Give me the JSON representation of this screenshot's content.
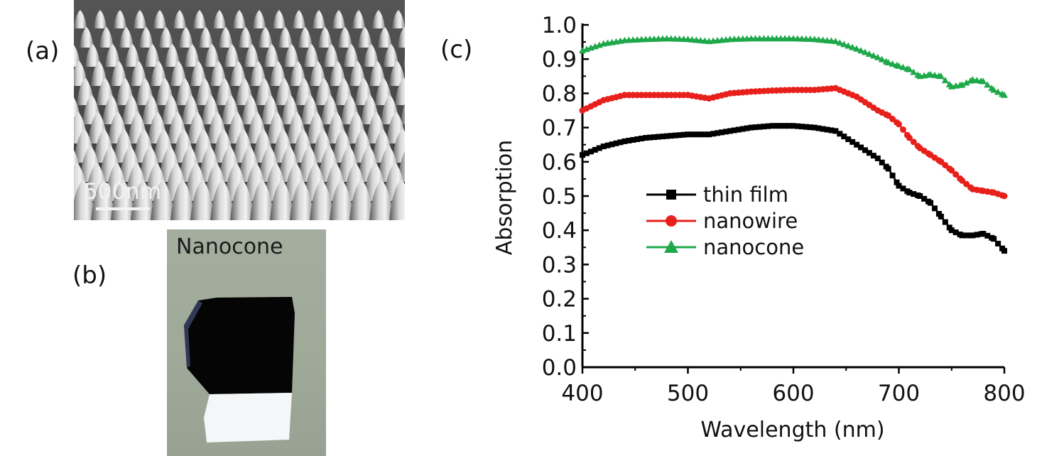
{
  "panels": {
    "a": "(a)",
    "b": "(b)",
    "c": "(c)"
  },
  "sem": {
    "scale_label": "500nm"
  },
  "photo": {
    "title": "Nanocone"
  },
  "colors": {
    "thin_film": "#000000",
    "nanowire": "#e8201c",
    "nanocone": "#1fa84a"
  },
  "chart_data": {
    "type": "line",
    "title": "",
    "xlabel": "Wavelength (nm)",
    "ylabel": "Absorption",
    "xlim": [
      400,
      800
    ],
    "ylim": [
      0.0,
      1.0
    ],
    "xticks": [
      400,
      500,
      600,
      700,
      800
    ],
    "yticks": [
      "0.0",
      "0.1",
      "0.2",
      "0.3",
      "0.4",
      "0.5",
      "0.6",
      "0.7",
      "0.8",
      "0.9",
      "1.0"
    ],
    "legend_position": "center-left",
    "series": [
      {
        "name": "thin film",
        "marker": "square",
        "x": [
          400,
          420,
          440,
          460,
          480,
          500,
          520,
          540,
          560,
          580,
          600,
          620,
          640,
          660,
          680,
          690,
          700,
          710,
          720,
          730,
          740,
          750,
          760,
          770,
          780,
          790,
          800
        ],
        "y": [
          0.62,
          0.645,
          0.66,
          0.67,
          0.675,
          0.68,
          0.68,
          0.69,
          0.7,
          0.705,
          0.705,
          0.7,
          0.69,
          0.65,
          0.61,
          0.58,
          0.53,
          0.51,
          0.5,
          0.48,
          0.44,
          0.4,
          0.385,
          0.385,
          0.39,
          0.375,
          0.34
        ]
      },
      {
        "name": "nanowire",
        "marker": "circle",
        "x": [
          400,
          420,
          440,
          460,
          480,
          500,
          520,
          540,
          560,
          580,
          600,
          620,
          640,
          660,
          680,
          690,
          700,
          710,
          720,
          730,
          740,
          750,
          760,
          770,
          780,
          790,
          800
        ],
        "y": [
          0.75,
          0.78,
          0.795,
          0.795,
          0.795,
          0.795,
          0.785,
          0.8,
          0.805,
          0.808,
          0.81,
          0.81,
          0.815,
          0.79,
          0.75,
          0.735,
          0.71,
          0.67,
          0.64,
          0.62,
          0.6,
          0.575,
          0.545,
          0.52,
          0.515,
          0.51,
          0.5
        ]
      },
      {
        "name": "nanocone",
        "marker": "triangle",
        "x": [
          400,
          420,
          440,
          460,
          480,
          500,
          520,
          540,
          560,
          580,
          600,
          620,
          640,
          660,
          680,
          690,
          700,
          710,
          720,
          730,
          740,
          750,
          760,
          770,
          780,
          790,
          800
        ],
        "y": [
          0.925,
          0.945,
          0.955,
          0.958,
          0.96,
          0.958,
          0.952,
          0.958,
          0.96,
          0.96,
          0.96,
          0.958,
          0.952,
          0.93,
          0.905,
          0.89,
          0.88,
          0.87,
          0.85,
          0.855,
          0.85,
          0.82,
          0.825,
          0.84,
          0.835,
          0.81,
          0.795
        ]
      }
    ]
  }
}
